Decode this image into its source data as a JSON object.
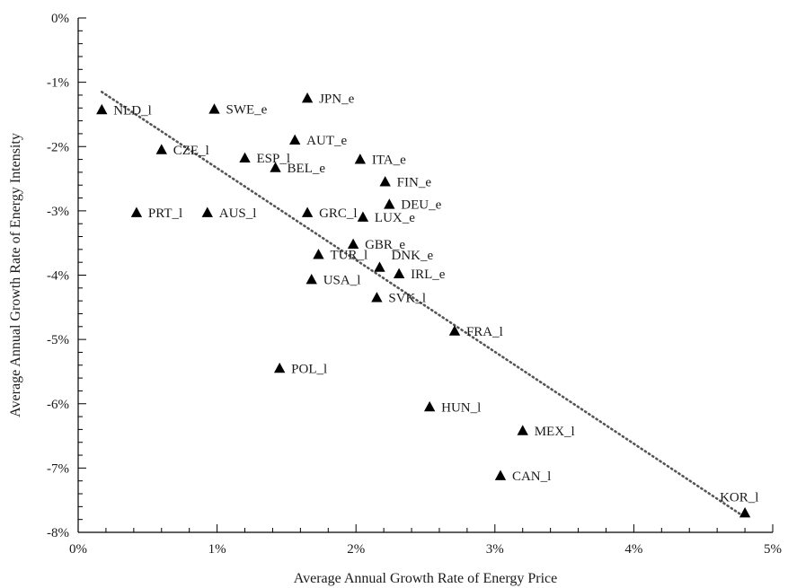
{
  "chart_data": {
    "type": "scatter",
    "xlabel": "Average Annual Growth Rate of Energy Price",
    "ylabel": "Average Annual Growth Rate of Energy Intensity",
    "xlim": [
      0,
      5
    ],
    "ylim": [
      -8,
      0
    ],
    "x_ticks": [
      "0%",
      "1%",
      "2%",
      "3%",
      "4%",
      "5%"
    ],
    "y_ticks": [
      "0%",
      "-1%",
      "-2%",
      "-3%",
      "-4%",
      "-5%",
      "-6%",
      "-7%",
      "-8%"
    ],
    "grid": false,
    "marker": "triangle",
    "marker_color": "#000000",
    "trendline": {
      "style": "dotted",
      "color": "#555555",
      "x": [
        0.17,
        4.79
      ],
      "y": [
        -1.15,
        -7.75
      ]
    },
    "points": [
      {
        "label": "NLD_l",
        "x": 0.17,
        "y": -1.43
      },
      {
        "label": "SWE_e",
        "x": 0.98,
        "y": -1.42
      },
      {
        "label": "JPN_e",
        "x": 1.65,
        "y": -1.25
      },
      {
        "label": "CZE_l",
        "x": 0.6,
        "y": -2.05
      },
      {
        "label": "ESP_l",
        "x": 1.2,
        "y": -2.18
      },
      {
        "label": "AUT_e",
        "x": 1.56,
        "y": -1.9
      },
      {
        "label": "ITA_e",
        "x": 2.03,
        "y": -2.2
      },
      {
        "label": "BEL_e",
        "x": 1.42,
        "y": -2.33
      },
      {
        "label": "FIN_e",
        "x": 2.21,
        "y": -2.55
      },
      {
        "label": "PRT_l",
        "x": 0.42,
        "y": -3.03
      },
      {
        "label": "AUS_l",
        "x": 0.93,
        "y": -3.03
      },
      {
        "label": "GRC_l",
        "x": 1.65,
        "y": -3.03
      },
      {
        "label": "DEU_e",
        "x": 2.24,
        "y": -2.9
      },
      {
        "label": "LUX_e",
        "x": 2.05,
        "y": -3.1
      },
      {
        "label": "GBR_e",
        "x": 1.98,
        "y": -3.52
      },
      {
        "label": "TUR_l",
        "x": 1.73,
        "y": -3.68
      },
      {
        "label": "DNK_e",
        "x": 2.17,
        "y": -3.88
      },
      {
        "label": "IRL_e",
        "x": 2.31,
        "y": -3.98
      },
      {
        "label": "USA_l",
        "x": 1.68,
        "y": -4.07
      },
      {
        "label": "SVK_l",
        "x": 2.15,
        "y": -4.35
      },
      {
        "label": "FRA_l",
        "x": 2.71,
        "y": -4.87
      },
      {
        "label": "POL_l",
        "x": 1.45,
        "y": -5.45
      },
      {
        "label": "HUN_l",
        "x": 2.53,
        "y": -6.05
      },
      {
        "label": "MEX_l",
        "x": 3.2,
        "y": -6.42
      },
      {
        "label": "CAN_l",
        "x": 3.04,
        "y": -7.12
      },
      {
        "label": "KOR_l",
        "x": 4.8,
        "y": -7.7
      }
    ]
  }
}
